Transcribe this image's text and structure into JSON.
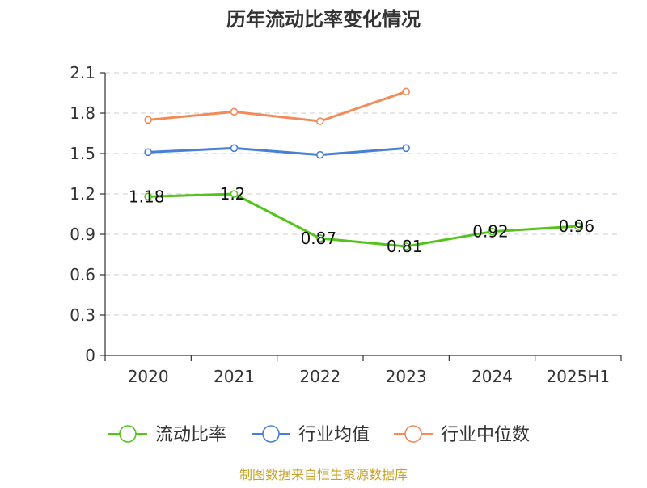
{
  "title": "历年流动比率变化情况",
  "source": "制图数据来自恒生聚源数据库",
  "chart_data": {
    "type": "line",
    "title": "历年流动比率变化情况",
    "categories": [
      "2020",
      "2021",
      "2022",
      "2023",
      "2024",
      "2025H1"
    ],
    "ylim": [
      0,
      2.1
    ],
    "yticks": [
      "0",
      "0.3",
      "0.6",
      "0.9",
      "1.2",
      "1.5",
      "1.8",
      "2.1"
    ],
    "grid": true,
    "legend_position": "bottom",
    "series": [
      {
        "name": "流动比率",
        "color": "#52c41a",
        "values": [
          1.18,
          1.2,
          0.87,
          0.81,
          0.92,
          0.96
        ],
        "labels": [
          "1.18",
          "1.2",
          "0.87",
          "0.81",
          "0.92",
          "0.96"
        ]
      },
      {
        "name": "行业均值",
        "color": "#4a7fd6",
        "values": [
          1.51,
          1.54,
          1.49,
          1.54,
          null,
          null
        ]
      },
      {
        "name": "行业中位数",
        "color": "#f28a5a",
        "values": [
          1.75,
          1.81,
          1.74,
          1.96,
          null,
          null
        ]
      }
    ]
  }
}
